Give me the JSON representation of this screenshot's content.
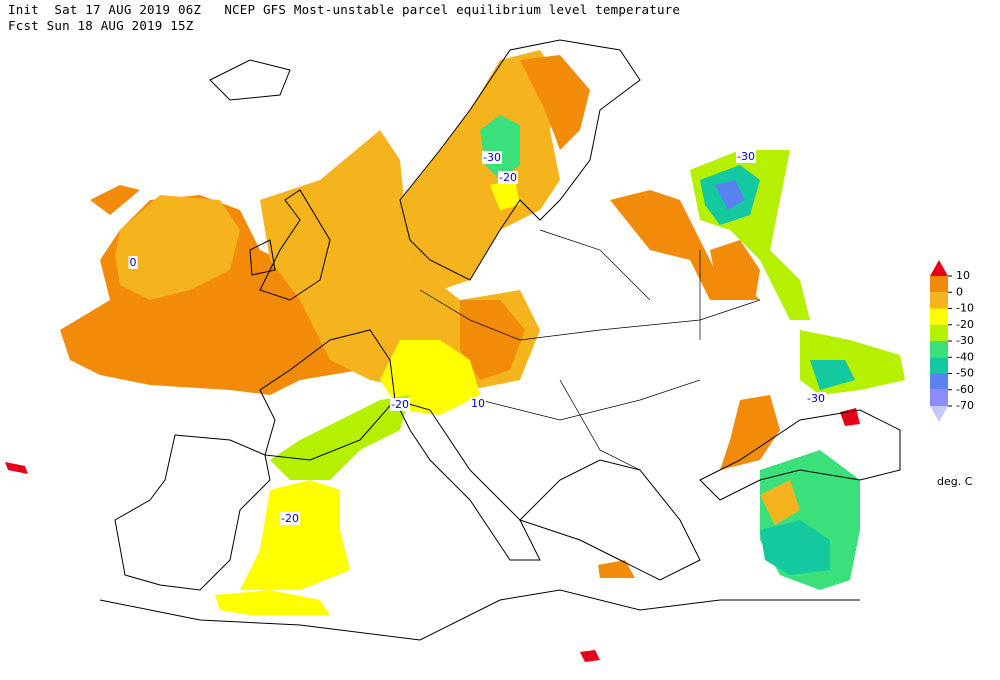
{
  "header": {
    "line1": "Init  Sat 17 AUG 2019 06Z   NCEP GFS Most-unstable parcel equilibrium level temperature",
    "line2": "Fcst Sun 18 AUG 2019 15Z"
  },
  "legend": {
    "ticks": [
      10,
      0,
      -10,
      -20,
      -30,
      -40,
      -50,
      -60,
      -70
    ],
    "colors": [
      "#e8001a",
      "#f28a0a",
      "#f5b41e",
      "#ffff00",
      "#b4f000",
      "#3ce07a",
      "#14c8a0",
      "#5a82f0",
      "#8c8cff",
      "#c8c8ff"
    ],
    "unit": "deg. C"
  },
  "contour_labels": [
    {
      "text": "0"
    },
    {
      "text": "-30"
    },
    {
      "text": "-20"
    },
    {
      "text": "-30"
    },
    {
      "text": "-20"
    },
    {
      "text": "10"
    },
    {
      "text": "-30"
    },
    {
      "text": "-20"
    }
  ]
}
